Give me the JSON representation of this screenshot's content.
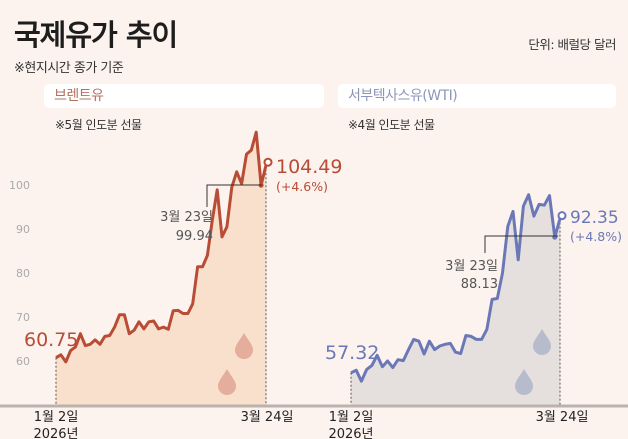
{
  "header": {
    "title": "국제유가 추이",
    "subtitle": "※현지시간 종가 기준",
    "unit": "단위: 배럴당 달러"
  },
  "colors": {
    "brent_line": "#b84c35",
    "brent_fill": "#f9e0cd",
    "wti_line": "#6a78b8",
    "wti_fill": "#e5e0de",
    "background": "#fcf3ee"
  },
  "chart_data": [
    {
      "type": "area",
      "title": "브렌트유",
      "note": "※5월 인도분 선물",
      "ylim": [
        45,
        115
      ],
      "y_ticks": [
        "100",
        "90",
        "80",
        "70",
        "60"
      ],
      "y_tick_values": [
        100,
        90,
        80,
        70,
        60
      ],
      "x_start_label": "1월 2일",
      "x_start_year": "2026년",
      "x_end_label": "3월 24일",
      "values": [
        60.75,
        61.4,
        59.8,
        62.4,
        63.2,
        66.2,
        63.5,
        63.8,
        64.8,
        63.8,
        65.6,
        65.8,
        67.7,
        70.5,
        70.5,
        66.2,
        67.0,
        68.9,
        67.3,
        68.9,
        69.1,
        67.3,
        67.7,
        67.2,
        71.4,
        71.5,
        70.8,
        70.8,
        73.0,
        81.4,
        81.4,
        84.0,
        92.0,
        98.9,
        88.2,
        90.5,
        99.5,
        103.0,
        100.3,
        107.0,
        107.9,
        112.0,
        99.94,
        104.49
      ],
      "start_value": "60.75",
      "end_value": "104.49",
      "end_change": "(+4.6%)",
      "prev_date": "3월 23일",
      "prev_value": "99.94"
    },
    {
      "type": "area",
      "title": "서부텍사스유(WTI)",
      "note": "※4월 인도분 선물",
      "ylim": [
        45,
        115
      ],
      "x_start_label": "1월 2일",
      "x_start_year": "2026년",
      "x_end_label": "3월 24일",
      "values": [
        57.32,
        57.9,
        55.4,
        58.1,
        59.0,
        61.3,
        58.7,
        60.0,
        58.5,
        60.3,
        60.1,
        62.6,
        64.9,
        64.5,
        61.6,
        64.5,
        62.6,
        63.4,
        63.8,
        64.0,
        62.0,
        61.7,
        65.8,
        65.6,
        64.9,
        64.9,
        67.2,
        74.0,
        74.2,
        80.0,
        90.6,
        94.0,
        83.0,
        95.2,
        97.8,
        92.9,
        95.6,
        95.4,
        97.6,
        88.13,
        92.35
      ],
      "start_value": "57.32",
      "end_value": "92.35",
      "end_change": "(+4.8%)",
      "prev_date": "3월 23일",
      "prev_value": "88.13"
    }
  ]
}
